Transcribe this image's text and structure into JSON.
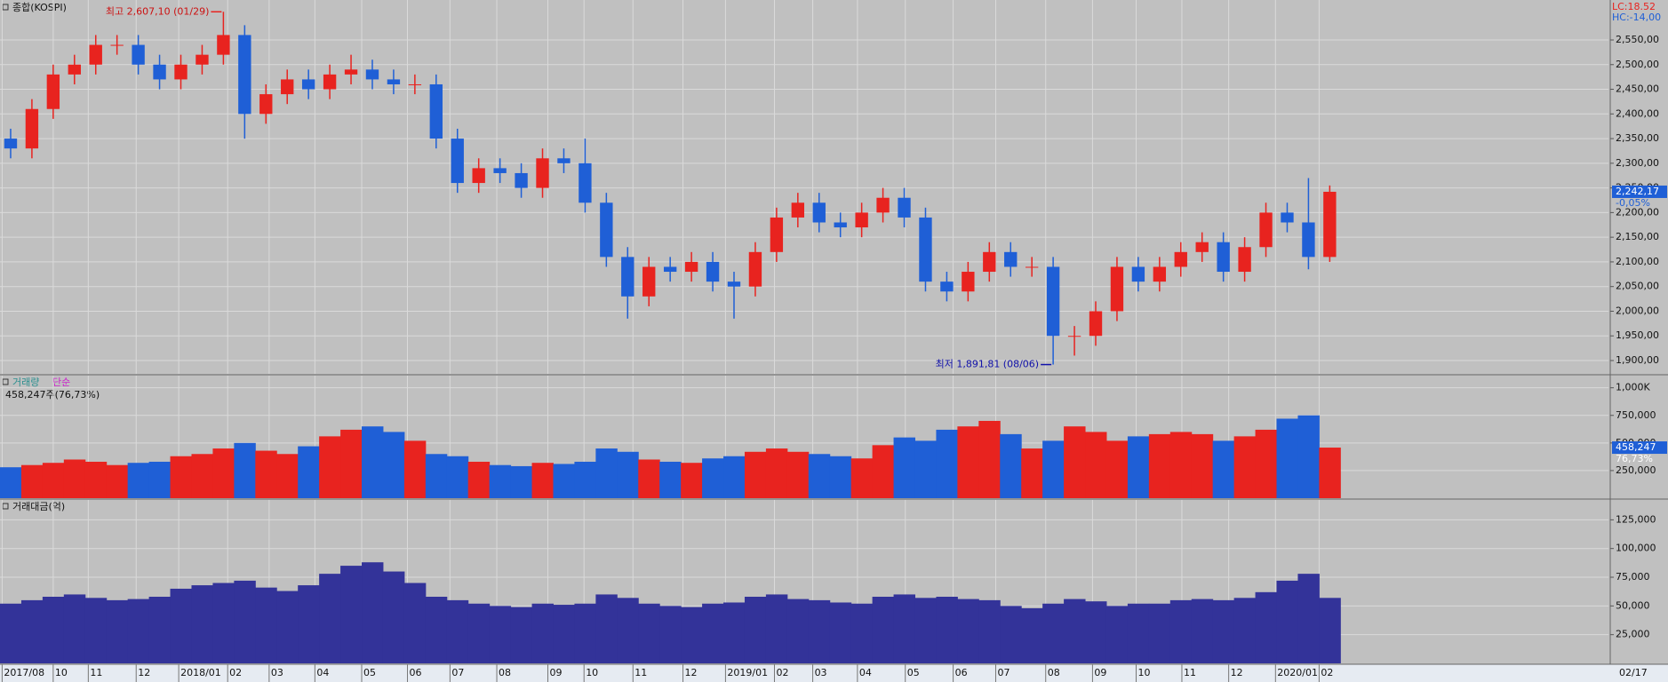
{
  "chart_data": [
    {
      "type": "candlestick",
      "title": "종합(KOSPI)",
      "lc_label": "LC:18.52",
      "hc_label": "HC:-14,00",
      "high_annotation": "최고 2,607,10 (01/29)",
      "low_annotation": "최저 1,891,81 (08/06)",
      "last_label": "2,242,17",
      "change_label": "-0,05%",
      "x_end_label": "02/17",
      "up_color": "#e8231f",
      "down_color": "#1f5fd6",
      "grid": true,
      "open": [
        2350,
        2330,
        2410,
        2480,
        2500,
        2540,
        2540,
        2500,
        2470,
        2500,
        2520,
        2560,
        2400,
        2440,
        2470,
        2450,
        2480,
        2490,
        2470,
        2460,
        2460,
        2350,
        2260,
        2290,
        2280,
        2250,
        2310,
        2300,
        2220,
        2110,
        2030,
        2090,
        2080,
        2100,
        2060,
        2050,
        2120,
        2190,
        2220,
        2180,
        2170,
        2200,
        2230,
        2190,
        2060,
        2040,
        2080,
        2120,
        2090,
        2090,
        1950,
        1950,
        2000,
        2090,
        2060,
        2090,
        2120,
        2140,
        2080,
        2130,
        2200,
        2180,
        2110
      ],
      "high": [
        2370,
        2430,
        2500,
        2520,
        2560,
        2560,
        2560,
        2520,
        2520,
        2540,
        2607.1,
        2580,
        2460,
        2490,
        2490,
        2500,
        2520,
        2510,
        2490,
        2480,
        2480,
        2370,
        2310,
        2310,
        2300,
        2330,
        2330,
        2350,
        2240,
        2130,
        2110,
        2110,
        2120,
        2120,
        2080,
        2140,
        2210,
        2240,
        2240,
        2200,
        2220,
        2250,
        2250,
        2210,
        2080,
        2100,
        2140,
        2140,
        2110,
        2110,
        1970,
        2020,
        2110,
        2110,
        2110,
        2140,
        2160,
        2160,
        2150,
        2220,
        2220,
        2270,
        2255
      ],
      "low": [
        2310,
        2310,
        2390,
        2460,
        2480,
        2520,
        2480,
        2450,
        2450,
        2480,
        2500,
        2350,
        2380,
        2420,
        2430,
        2430,
        2460,
        2450,
        2440,
        2440,
        2330,
        2240,
        2240,
        2260,
        2230,
        2230,
        2280,
        2200,
        2090,
        1985,
        2010,
        2060,
        2060,
        2040,
        1985,
        2030,
        2100,
        2170,
        2160,
        2150,
        2150,
        2180,
        2170,
        2040,
        2020,
        2020,
        2060,
        2070,
        2070,
        1891.81,
        1910,
        1930,
        1980,
        2040,
        2040,
        2070,
        2100,
        2060,
        2060,
        2110,
        2160,
        2085,
        2100
      ],
      "close": [
        2330,
        2410,
        2480,
        2500,
        2540,
        2540,
        2500,
        2470,
        2500,
        2520,
        2560,
        2400,
        2440,
        2470,
        2450,
        2480,
        2490,
        2470,
        2460,
        2460,
        2350,
        2260,
        2290,
        2280,
        2250,
        2310,
        2300,
        2220,
        2110,
        2030,
        2090,
        2080,
        2100,
        2060,
        2050,
        2120,
        2190,
        2220,
        2180,
        2170,
        2200,
        2230,
        2190,
        2060,
        2040,
        2080,
        2120,
        2090,
        2090,
        1950,
        1950,
        2000,
        2090,
        2060,
        2090,
        2120,
        2140,
        2080,
        2130,
        2200,
        2180,
        2110,
        2242.17
      ],
      "xlim": [
        0,
        75.6
      ],
      "xticks": [
        {
          "value": 0.1,
          "label": "2017/08"
        },
        {
          "value": 2.5,
          "label": "10"
        },
        {
          "value": 4.15,
          "label": "11"
        },
        {
          "value": 6.4,
          "label": "12"
        },
        {
          "value": 8.4,
          "label": "2018/01"
        },
        {
          "value": 10.7,
          "label": "02"
        },
        {
          "value": 12.65,
          "label": "03"
        },
        {
          "value": 14.8,
          "label": "04"
        },
        {
          "value": 17,
          "label": "05"
        },
        {
          "value": 19.15,
          "label": "06"
        },
        {
          "value": 21.15,
          "label": "07"
        },
        {
          "value": 23.35,
          "label": "08"
        },
        {
          "value": 25.75,
          "label": "09"
        },
        {
          "value": 27.45,
          "label": "10"
        },
        {
          "value": 29.75,
          "label": "11"
        },
        {
          "value": 32.1,
          "label": "12"
        },
        {
          "value": 34.1,
          "label": "2019/01"
        },
        {
          "value": 36.4,
          "label": "02"
        },
        {
          "value": 38.2,
          "label": "03"
        },
        {
          "value": 40.3,
          "label": "04"
        },
        {
          "value": 42.55,
          "label": "05"
        },
        {
          "value": 44.8,
          "label": "06"
        },
        {
          "value": 46.8,
          "label": "07"
        },
        {
          "value": 49.15,
          "label": "08"
        },
        {
          "value": 51.35,
          "label": "09"
        },
        {
          "value": 53.4,
          "label": "10"
        },
        {
          "value": 55.55,
          "label": "11"
        },
        {
          "value": 57.75,
          "label": "12"
        },
        {
          "value": 59.95,
          "label": "2020/01"
        },
        {
          "value": 62,
          "label": "02"
        }
      ],
      "ylim": [
        1873,
        2631
      ],
      "yticks": [
        {
          "value": 1900,
          "label": "1,900,00"
        },
        {
          "value": 1950,
          "label": "1,950,00"
        },
        {
          "value": 2000,
          "label": "2,000,00"
        },
        {
          "value": 2050,
          "label": "2,050,00"
        },
        {
          "value": 2100,
          "label": "2,100,00"
        },
        {
          "value": 2150,
          "label": "2,150,00"
        },
        {
          "value": 2200,
          "label": "2,200,00"
        },
        {
          "value": 2250,
          "label": "2,250,00"
        },
        {
          "value": 2300,
          "label": "2,300,00"
        },
        {
          "value": 2350,
          "label": "2,350,00"
        },
        {
          "value": 2400,
          "label": "2,400,00"
        },
        {
          "value": 2450,
          "label": "2,450,00"
        },
        {
          "value": 2500,
          "label": "2,500,00"
        },
        {
          "value": 2550,
          "label": "2,550,00"
        }
      ]
    },
    {
      "type": "bar",
      "title": "거래량",
      "subtitle": "단순",
      "info": "458,247주(76,73%)",
      "last_label": "458,247",
      "ratio_label": "76,73%",
      "grid": true,
      "values": [
        280000,
        300000,
        320000,
        350000,
        330000,
        300000,
        320000,
        330000,
        380000,
        400000,
        450000,
        500000,
        430000,
        400000,
        470000,
        560000,
        620000,
        650000,
        600000,
        520000,
        400000,
        380000,
        330000,
        300000,
        290000,
        320000,
        310000,
        330000,
        450000,
        420000,
        350000,
        330000,
        320000,
        360000,
        380000,
        420000,
        450000,
        420000,
        400000,
        380000,
        360000,
        480000,
        550000,
        520000,
        620000,
        650000,
        700000,
        580000,
        450000,
        520000,
        650000,
        600000,
        520000,
        560000,
        580000,
        600000,
        580000,
        520000,
        560000,
        620000,
        720000,
        750000,
        458247
      ],
      "ylim": [
        0,
        1110000
      ],
      "yticks": [
        {
          "value": 250000,
          "label": "250,000"
        },
        {
          "value": 500000,
          "label": "500,000"
        },
        {
          "value": 750000,
          "label": "750,000"
        },
        {
          "value": 1000000,
          "label": "1,000K"
        }
      ]
    },
    {
      "type": "bar",
      "title": "거래대금(억)",
      "color": "#333399",
      "grid": true,
      "values": [
        52000,
        55000,
        58000,
        60000,
        57000,
        55000,
        56000,
        58000,
        65000,
        68000,
        70000,
        72000,
        66000,
        63000,
        68000,
        78000,
        85000,
        88000,
        80000,
        70000,
        58000,
        55000,
        52000,
        50000,
        49000,
        52000,
        51000,
        52000,
        60000,
        57000,
        52000,
        50000,
        49000,
        52000,
        53000,
        58000,
        60000,
        56000,
        55000,
        53000,
        52000,
        58000,
        60000,
        57000,
        58000,
        56000,
        55000,
        50000,
        48000,
        52000,
        56000,
        54000,
        50000,
        52000,
        52000,
        55000,
        56000,
        55000,
        57000,
        62000,
        72000,
        78000,
        57000
      ],
      "ylim": [
        0,
        142300
      ],
      "yticks": [
        {
          "value": 25000,
          "label": "25,000"
        },
        {
          "value": 50000,
          "label": "50,000"
        },
        {
          "value": 75000,
          "label": "75,000"
        },
        {
          "value": 100000,
          "label": "100,000"
        },
        {
          "value": 125000,
          "label": "125,000"
        }
      ]
    }
  ]
}
